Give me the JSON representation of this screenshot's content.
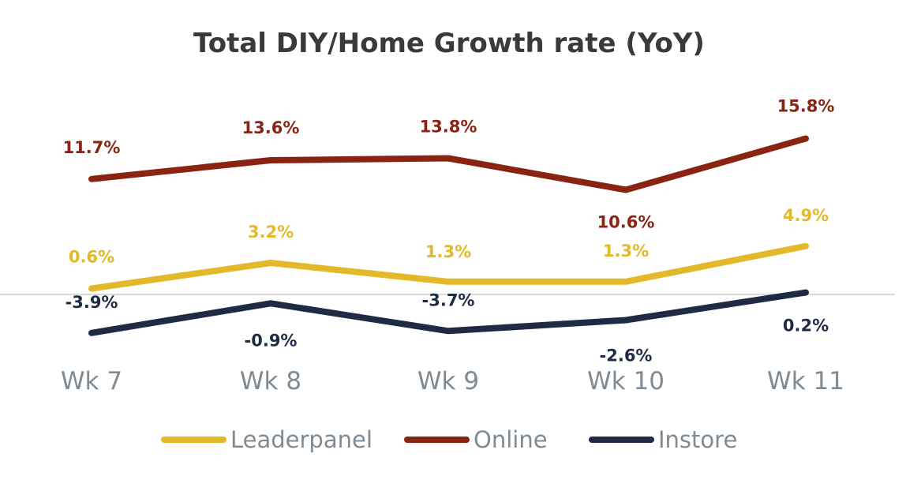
{
  "chart_data": {
    "type": "line",
    "title": "Total DIY/Home Growth rate (YoY)",
    "categories": [
      "Wk 7",
      "Wk 8",
      "Wk 9",
      "Wk 10",
      "Wk 11"
    ],
    "series": [
      {
        "name": "Leaderpanel",
        "color": "#e3b929",
        "values": [
          0.6,
          3.2,
          1.3,
          1.3,
          4.9
        ],
        "labels": [
          "0.6%",
          "3.2%",
          "1.3%",
          "1.3%",
          "4.9%"
        ]
      },
      {
        "name": "Online",
        "color": "#8b2313",
        "values": [
          11.7,
          13.6,
          13.8,
          10.6,
          15.8
        ],
        "labels": [
          "11.7%",
          "13.6%",
          "13.8%",
          "10.6%",
          "15.8%"
        ]
      },
      {
        "name": "Instore",
        "color": "#1f2a44",
        "values": [
          -3.9,
          -0.9,
          -3.7,
          -2.6,
          0.2
        ],
        "labels": [
          "-3.9%",
          "-0.9%",
          "-3.7%",
          "-2.6%",
          "0.2%"
        ]
      }
    ],
    "ylim": [
      -5,
      17
    ],
    "grid": false,
    "zero_line": true,
    "legend_position": "bottom"
  }
}
